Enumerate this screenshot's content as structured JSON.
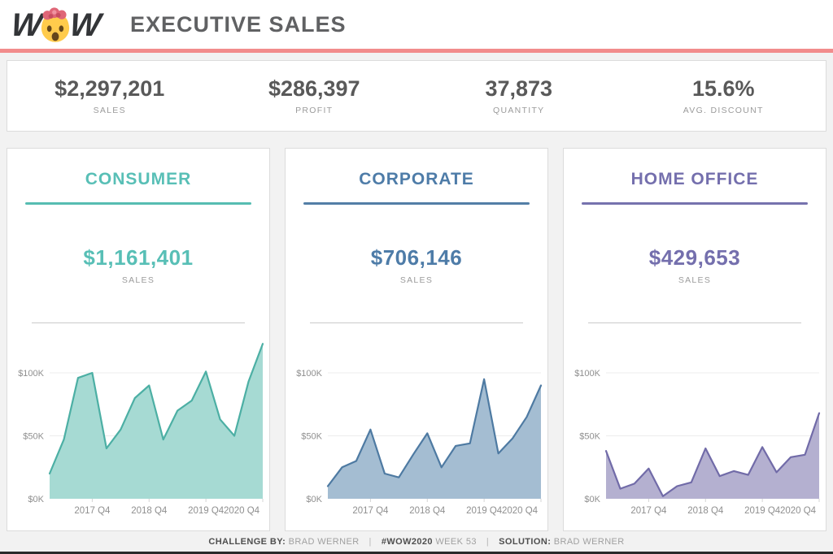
{
  "header": {
    "logo_left": "W",
    "logo_right": "W",
    "logo_emoji": "exploding-head",
    "title": "EXECUTIVE SALES",
    "rule_color": "#f28c8c"
  },
  "kpis": [
    {
      "value": "$2,297,201",
      "label": "SALES"
    },
    {
      "value": "$286,397",
      "label": "PROFIT"
    },
    {
      "value": "37,873",
      "label": "QUANTITY"
    },
    {
      "value": "15.6%",
      "label": "AVG. DISCOUNT"
    }
  ],
  "panels": [
    {
      "title": "CONSUMER",
      "value": "$1,161,401",
      "value_label": "SALES",
      "accent": "#56bdb2",
      "accent_dark": "#58bfb6",
      "line_color": "#4cafa4",
      "fill_color": "#a6dad3"
    },
    {
      "title": "CORPORATE",
      "value": "$706,146",
      "value_label": "SALES",
      "accent": "#537ea6",
      "accent_dark": "#4e7ca8",
      "line_color": "#4e7aa2",
      "fill_color": "#a4bdd2"
    },
    {
      "title": "HOME OFFICE",
      "value": "$429,653",
      "value_label": "SALES",
      "accent": "#7672ae",
      "accent_dark": "#746fad",
      "line_color": "#716ba8",
      "fill_color": "#b4b0d0"
    }
  ],
  "chart_data": [
    {
      "type": "area",
      "title": "Consumer quarterly sales",
      "x": [
        "2017 Q1",
        "2017 Q2",
        "2017 Q3",
        "2017 Q4",
        "2018 Q1",
        "2018 Q2",
        "2018 Q3",
        "2018 Q4",
        "2019 Q1",
        "2019 Q2",
        "2019 Q3",
        "2019 Q4",
        "2020 Q1",
        "2020 Q2",
        "2020 Q3",
        "2020 Q4"
      ],
      "values_k": [
        20,
        47,
        96,
        100,
        40,
        55,
        80,
        90,
        47,
        70,
        78,
        101,
        63,
        50,
        93,
        123
      ],
      "unit": "USD thousands",
      "ylim": [
        0,
        130
      ],
      "yticks": [
        {
          "v": 0,
          "label": "$0K"
        },
        {
          "v": 50,
          "label": "$50K"
        },
        {
          "v": 100,
          "label": "$100K"
        }
      ],
      "xticks": [
        "2017 Q4",
        "2018 Q4",
        "2019 Q4",
        "2020 Q4"
      ],
      "grid": true,
      "legend": "none"
    },
    {
      "type": "area",
      "title": "Corporate quarterly sales",
      "x": [
        "2017 Q1",
        "2017 Q2",
        "2017 Q3",
        "2017 Q4",
        "2018 Q1",
        "2018 Q2",
        "2018 Q3",
        "2018 Q4",
        "2019 Q1",
        "2019 Q2",
        "2019 Q3",
        "2019 Q4",
        "2020 Q1",
        "2020 Q2",
        "2020 Q3",
        "2020 Q4"
      ],
      "values_k": [
        10,
        25,
        30,
        55,
        20,
        17,
        35,
        52,
        25,
        42,
        44,
        95,
        36,
        48,
        65,
        90
      ],
      "unit": "USD thousands",
      "ylim": [
        0,
        130
      ],
      "yticks": [
        {
          "v": 0,
          "label": "$0K"
        },
        {
          "v": 50,
          "label": "$50K"
        },
        {
          "v": 100,
          "label": "$100K"
        }
      ],
      "xticks": [
        "2017 Q4",
        "2018 Q4",
        "2019 Q4",
        "2020 Q4"
      ],
      "grid": true,
      "legend": "none"
    },
    {
      "type": "area",
      "title": "Home Office quarterly sales",
      "x": [
        "2017 Q1",
        "2017 Q2",
        "2017 Q3",
        "2017 Q4",
        "2018 Q1",
        "2018 Q2",
        "2018 Q3",
        "2018 Q4",
        "2019 Q1",
        "2019 Q2",
        "2019 Q3",
        "2019 Q4",
        "2020 Q1",
        "2020 Q2",
        "2020 Q3",
        "2020 Q4"
      ],
      "values_k": [
        38,
        8,
        12,
        24,
        2,
        10,
        13,
        40,
        18,
        22,
        19,
        41,
        21,
        33,
        35,
        68
      ],
      "unit": "USD thousands",
      "ylim": [
        0,
        130
      ],
      "yticks": [
        {
          "v": 0,
          "label": "$0K"
        },
        {
          "v": 50,
          "label": "$50K"
        },
        {
          "v": 100,
          "label": "$100K"
        }
      ],
      "xticks": [
        "2017 Q4",
        "2018 Q4",
        "2019 Q4",
        "2020 Q4"
      ],
      "grid": true,
      "legend": "none"
    }
  ],
  "footer": {
    "challenge_label": "CHALLENGE BY:",
    "challenge_value": "BRAD WERNER",
    "separator": "|",
    "hashtag": "#WOW2020",
    "week": "WEEK 53",
    "solution_label": "SOLUTION:",
    "solution_value": "BRAD WERNER"
  }
}
